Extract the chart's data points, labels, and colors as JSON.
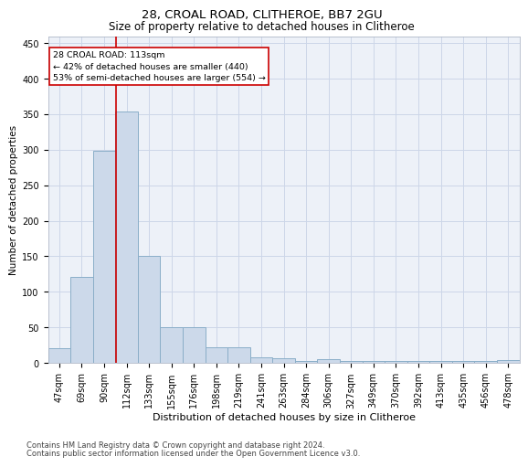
{
  "title1": "28, CROAL ROAD, CLITHEROE, BB7 2GU",
  "title2": "Size of property relative to detached houses in Clitheroe",
  "xlabel": "Distribution of detached houses by size in Clitheroe",
  "ylabel": "Number of detached properties",
  "bar_labels": [
    "47sqm",
    "69sqm",
    "90sqm",
    "112sqm",
    "133sqm",
    "155sqm",
    "176sqm",
    "198sqm",
    "219sqm",
    "241sqm",
    "263sqm",
    "284sqm",
    "306sqm",
    "327sqm",
    "349sqm",
    "370sqm",
    "392sqm",
    "413sqm",
    "435sqm",
    "456sqm",
    "478sqm"
  ],
  "bar_values": [
    20,
    121,
    298,
    354,
    150,
    50,
    50,
    22,
    22,
    8,
    6,
    2,
    5,
    2,
    2,
    2,
    2,
    2,
    2,
    2,
    4
  ],
  "bar_color": "#ccd9ea",
  "bar_edgecolor": "#8aaec8",
  "vline_color": "#cc0000",
  "annotation_line1": "28 CROAL ROAD: 113sqm",
  "annotation_line2": "← 42% of detached houses are smaller (440)",
  "annotation_line3": "53% of semi-detached houses are larger (554) →",
  "annotation_box_edgecolor": "#cc0000",
  "annotation_box_facecolor": "#ffffff",
  "ylim": [
    0,
    460
  ],
  "yticks": [
    0,
    50,
    100,
    150,
    200,
    250,
    300,
    350,
    400,
    450
  ],
  "footer1": "Contains HM Land Registry data © Crown copyright and database right 2024.",
  "footer2": "Contains public sector information licensed under the Open Government Licence v3.0.",
  "grid_color": "#ccd6e8",
  "background_color": "#edf1f8",
  "title1_fontsize": 9.5,
  "title2_fontsize": 8.5,
  "xlabel_fontsize": 8,
  "ylabel_fontsize": 7.5,
  "tick_fontsize": 7,
  "footer_fontsize": 6,
  "vline_x_index": 2.55
}
